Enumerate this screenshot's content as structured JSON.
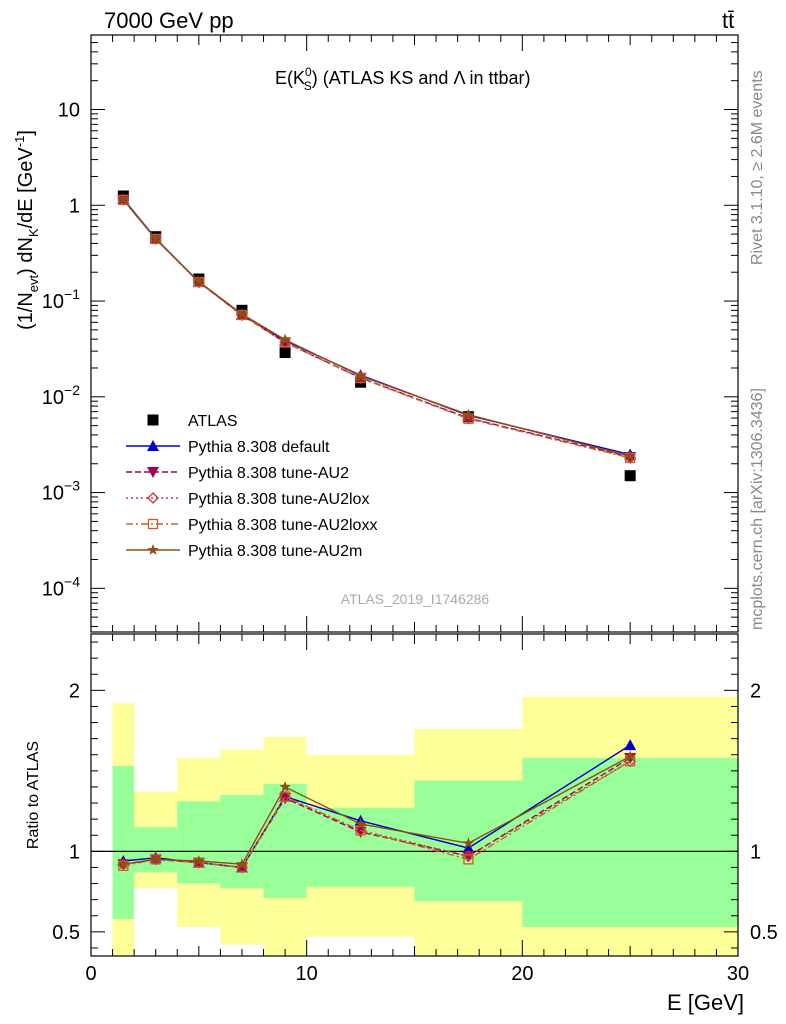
{
  "header": {
    "left": "7000 GeV pp",
    "right": "tt̄"
  },
  "side_labels": {
    "rivet": "Rivet 3.1.10, ≥ 2.6M events",
    "mcplots": "mcplots.cern.ch [arXiv:1306.3436]"
  },
  "colors": {
    "atlas": "#000000",
    "default": "#0000cc",
    "AU2": "#a0005a",
    "AU2lox": "#c83232",
    "AU2loxx": "#d05a28",
    "AU2m": "#8c5014",
    "band_inner": "#99ff99",
    "band_outer": "#ffff99"
  },
  "chart_data": [
    {
      "type": "line",
      "title": "E(K_S^0) (ATLAS KS and Λ in ttbar)",
      "title_main": "E(K",
      "title_sup": "0",
      "title_sub": "S",
      "title_rest": ") (ATLAS KS and Λ in ttbar)",
      "ylabel": "(1/N_evt) dN_K/dE [GeV^-1]",
      "ylabel_parts": {
        "a": "(1/N",
        "b": "evt",
        "c": ") dN",
        "d": "K",
        "e": "/dE [GeV",
        "f": "-1",
        "g": "]"
      },
      "xlabel": "E [GeV]",
      "xlim": [
        0,
        30
      ],
      "ylim": [
        3.5e-05,
        60
      ],
      "log_y": true,
      "y_ticks": [
        {
          "v": 0.0001,
          "base": "10",
          "exp": "−4"
        },
        {
          "v": 0.001,
          "base": "10",
          "exp": "−3"
        },
        {
          "v": 0.01,
          "base": "10",
          "exp": "−2"
        },
        {
          "v": 0.1,
          "base": "10",
          "exp": "−1"
        },
        {
          "v": 1,
          "base": "1",
          "exp": ""
        },
        {
          "v": 10,
          "base": "10",
          "exp": ""
        }
      ],
      "watermark": "ATLAS_2019_I1746286",
      "x": [
        1.5,
        3.0,
        5.0,
        7.0,
        9.0,
        12.5,
        17.5,
        25.0
      ],
      "series": [
        {
          "key": "atlas",
          "name": "ATLAS",
          "marker": "square",
          "style": "none",
          "values": [
            1.25,
            0.47,
            0.17,
            0.08,
            0.029,
            0.0142,
            0.0062,
            0.0015
          ]
        },
        {
          "key": "default",
          "name": "Pythia 8.308 default",
          "marker": "triangle-up",
          "style": "solid",
          "values": [
            1.17,
            0.45,
            0.158,
            0.072,
            0.0385,
            0.0168,
            0.0064,
            0.0025
          ]
        },
        {
          "key": "AU2",
          "name": "Pythia 8.308 tune-AU2",
          "marker": "triangle-down",
          "style": "dashed",
          "values": [
            1.14,
            0.445,
            0.158,
            0.071,
            0.037,
            0.0158,
            0.006,
            0.00235
          ]
        },
        {
          "key": "AU2lox",
          "name": "Pythia 8.308 tune-AU2lox",
          "marker": "diamond-open",
          "style": "dotted",
          "values": [
            1.14,
            0.445,
            0.157,
            0.0715,
            0.037,
            0.0157,
            0.006,
            0.0023
          ]
        },
        {
          "key": "AU2loxx",
          "name": "Pythia 8.308 tune-AU2loxx",
          "marker": "square-open",
          "style": "dashdot",
          "values": [
            1.14,
            0.445,
            0.158,
            0.0715,
            0.037,
            0.0157,
            0.0059,
            0.0023
          ]
        },
        {
          "key": "AU2m",
          "name": "Pythia 8.308 tune-AU2m",
          "marker": "star",
          "style": "solid",
          "values": [
            1.15,
            0.445,
            0.16,
            0.073,
            0.0395,
            0.0165,
            0.0065,
            0.0024
          ]
        }
      ],
      "legend_position": "lower-left"
    },
    {
      "type": "line",
      "ylabel": "Ratio to ATLAS",
      "xlabel": "E [GeV]",
      "xlim": [
        0,
        30
      ],
      "ylim": [
        0.35,
        2.35
      ],
      "y_ticks": [
        0.5,
        1,
        2
      ],
      "x_ticks": [
        0,
        10,
        20,
        30
      ],
      "bins": [
        {
          "lo": 1,
          "hi": 2,
          "inner": [
            0.58,
            1.53
          ],
          "outer": [
            0.35,
            1.92
          ]
        },
        {
          "lo": 2,
          "hi": 4,
          "inner": [
            0.87,
            1.15
          ],
          "outer": [
            0.77,
            1.37
          ]
        },
        {
          "lo": 4,
          "hi": 6,
          "inner": [
            0.8,
            1.31
          ],
          "outer": [
            0.53,
            1.58
          ]
        },
        {
          "lo": 6,
          "hi": 8,
          "inner": [
            0.77,
            1.35
          ],
          "outer": [
            0.42,
            1.63
          ]
        },
        {
          "lo": 8,
          "hi": 10,
          "inner": [
            0.71,
            1.42
          ],
          "outer": [
            0.35,
            1.71
          ]
        },
        {
          "lo": 10,
          "hi": 15,
          "inner": [
            0.78,
            1.27
          ],
          "outer": [
            0.47,
            1.6
          ]
        },
        {
          "lo": 15,
          "hi": 20,
          "inner": [
            0.69,
            1.44
          ],
          "outer": [
            0.35,
            1.76
          ]
        },
        {
          "lo": 20,
          "hi": 30,
          "inner": [
            0.53,
            1.58
          ],
          "outer": [
            0.35,
            1.96
          ]
        }
      ],
      "series": [
        {
          "key": "default",
          "values": [
            0.94,
            0.96,
            0.93,
            0.9,
            1.34,
            1.19,
            1.02,
            1.66
          ]
        },
        {
          "key": "AU2",
          "values": [
            0.92,
            0.95,
            0.93,
            0.9,
            1.33,
            1.12,
            0.97,
            1.58
          ]
        },
        {
          "key": "AU2lox",
          "values": [
            0.92,
            0.95,
            0.93,
            0.9,
            1.34,
            1.13,
            0.97,
            1.56
          ]
        },
        {
          "key": "AU2loxx",
          "values": [
            0.91,
            0.95,
            0.93,
            0.9,
            1.34,
            1.13,
            0.95,
            1.56
          ]
        },
        {
          "key": "AU2m",
          "values": [
            0.92,
            0.95,
            0.94,
            0.92,
            1.4,
            1.17,
            1.05,
            1.59
          ]
        }
      ]
    }
  ]
}
